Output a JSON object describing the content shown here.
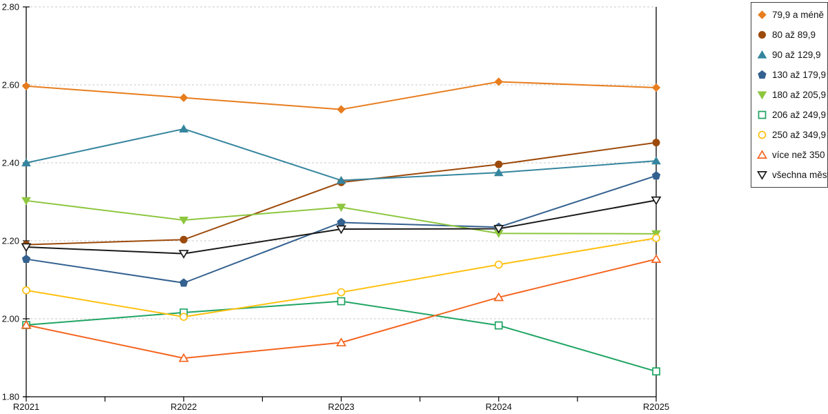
{
  "chart_data": {
    "type": "line",
    "title": "",
    "xlabel": "",
    "ylabel": "",
    "categories": [
      "R2021",
      "R2022",
      "R2023",
      "R2024",
      "R2025"
    ],
    "y_ticks": [
      "2.80",
      "2.60",
      "2.40",
      "2.20",
      "2.00",
      "1.80"
    ],
    "ylim": [
      1.8,
      2.8
    ],
    "y_step": 0.2,
    "grid": "horizontal-dotted",
    "gridline_color": "#c9c9c9",
    "axis_color": "#000000",
    "legend_position": "top-right",
    "series": [
      {
        "name": "79,9 a méně",
        "color": "#E87D1E",
        "marker": "diamond",
        "fill": "filled",
        "values": [
          2.597,
          2.567,
          2.537,
          2.608,
          2.593
        ]
      },
      {
        "name": "80 až 89,9",
        "color": "#9C4A0B",
        "marker": "circle",
        "fill": "filled",
        "values": [
          2.19,
          2.203,
          2.35,
          2.396,
          2.452
        ]
      },
      {
        "name": "90 až 129,9",
        "color": "#35859E",
        "marker": "triangle-up",
        "fill": "filled",
        "values": [
          2.4,
          2.487,
          2.355,
          2.375,
          2.405
        ]
      },
      {
        "name": "130 až 179,9",
        "color": "#34618F",
        "marker": "pentagon",
        "fill": "filled",
        "values": [
          2.153,
          2.092,
          2.247,
          2.235,
          2.367
        ]
      },
      {
        "name": "180 až 205,9",
        "color": "#8DC63F",
        "marker": "triangle-down",
        "fill": "filled",
        "values": [
          2.303,
          2.253,
          2.286,
          2.219,
          2.218
        ]
      },
      {
        "name": "206 až 249,9",
        "color": "#1FA463",
        "marker": "square",
        "fill": "open",
        "values": [
          1.984,
          2.016,
          2.045,
          1.983,
          1.865
        ]
      },
      {
        "name": "250 až 349,9",
        "color": "#FFC010",
        "marker": "circle",
        "fill": "open",
        "values": [
          2.073,
          2.005,
          2.068,
          2.139,
          2.207
        ]
      },
      {
        "name": "více než 350",
        "color": "#F4641E",
        "marker": "triangle-up",
        "fill": "open",
        "values": [
          1.984,
          1.899,
          1.939,
          2.055,
          2.153
        ]
      },
      {
        "name": "všechna města",
        "color": "#1A1A1A",
        "marker": "triangle-down",
        "fill": "open",
        "values": [
          2.184,
          2.167,
          2.23,
          2.231,
          2.304
        ]
      }
    ]
  }
}
